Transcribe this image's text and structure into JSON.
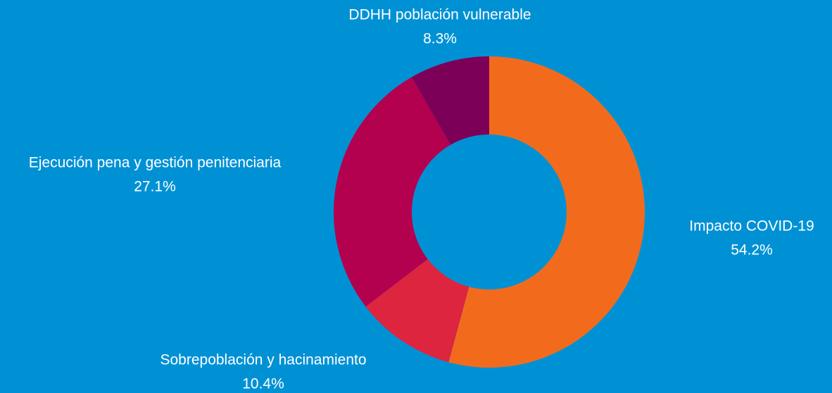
{
  "chart_data": {
    "type": "donut",
    "categories": [
      "Impacto COVID-19",
      "Sobrepoblación y hacinamiento",
      "Ejecución pena y gestión penitenciaria",
      "DDHH población vulnerable"
    ],
    "values": [
      54.2,
      10.4,
      27.1,
      8.3
    ],
    "value_labels": [
      "54.2%",
      "10.4%",
      "27.1%",
      "8.3%"
    ],
    "colors": [
      "#f26b1d",
      "#dd2540",
      "#b3004f",
      "#7c0057"
    ]
  }
}
